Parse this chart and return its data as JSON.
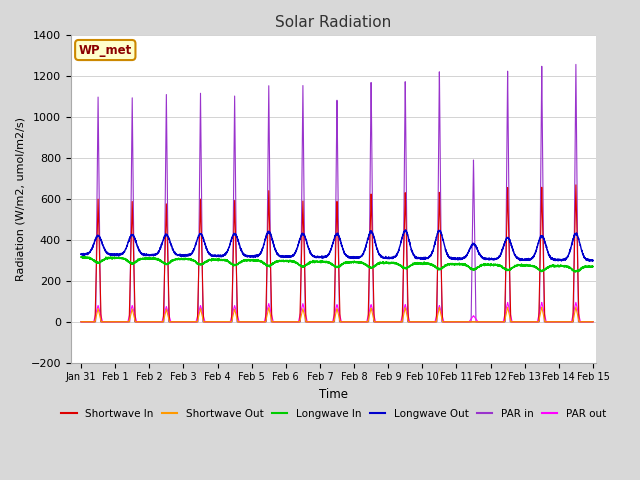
{
  "title": "Solar Radiation",
  "xlabel": "Time",
  "ylabel": "Radiation (W/m2, umol/m2/s)",
  "ylim": [
    -200,
    1400
  ],
  "yticks": [
    -200,
    0,
    200,
    400,
    600,
    800,
    1000,
    1200,
    1400
  ],
  "fig_bg_color": "#d8d8d8",
  "plot_bg_color": "#ffffff",
  "annotation": "WP_met",
  "legend": [
    "Shortwave In",
    "Shortwave Out",
    "Longwave In",
    "Longwave Out",
    "PAR in",
    "PAR out"
  ],
  "colors": {
    "shortwave_in": "#dd0000",
    "shortwave_out": "#ff9900",
    "longwave_in": "#00cc00",
    "longwave_out": "#0000cc",
    "par_in": "#9933cc",
    "par_out": "#ff00ff"
  },
  "num_days": 15,
  "x_tick_labels": [
    "Jan 31",
    "Feb 1",
    "Feb 2",
    "Feb 3",
    "Feb 4",
    "Feb 5",
    "Feb 6",
    "Feb 7",
    "Feb 8",
    "Feb 9",
    "Feb 10",
    "Feb 11",
    "Feb 12",
    "Feb 13",
    "Feb 14",
    "Feb 15"
  ],
  "points_per_day": 288
}
